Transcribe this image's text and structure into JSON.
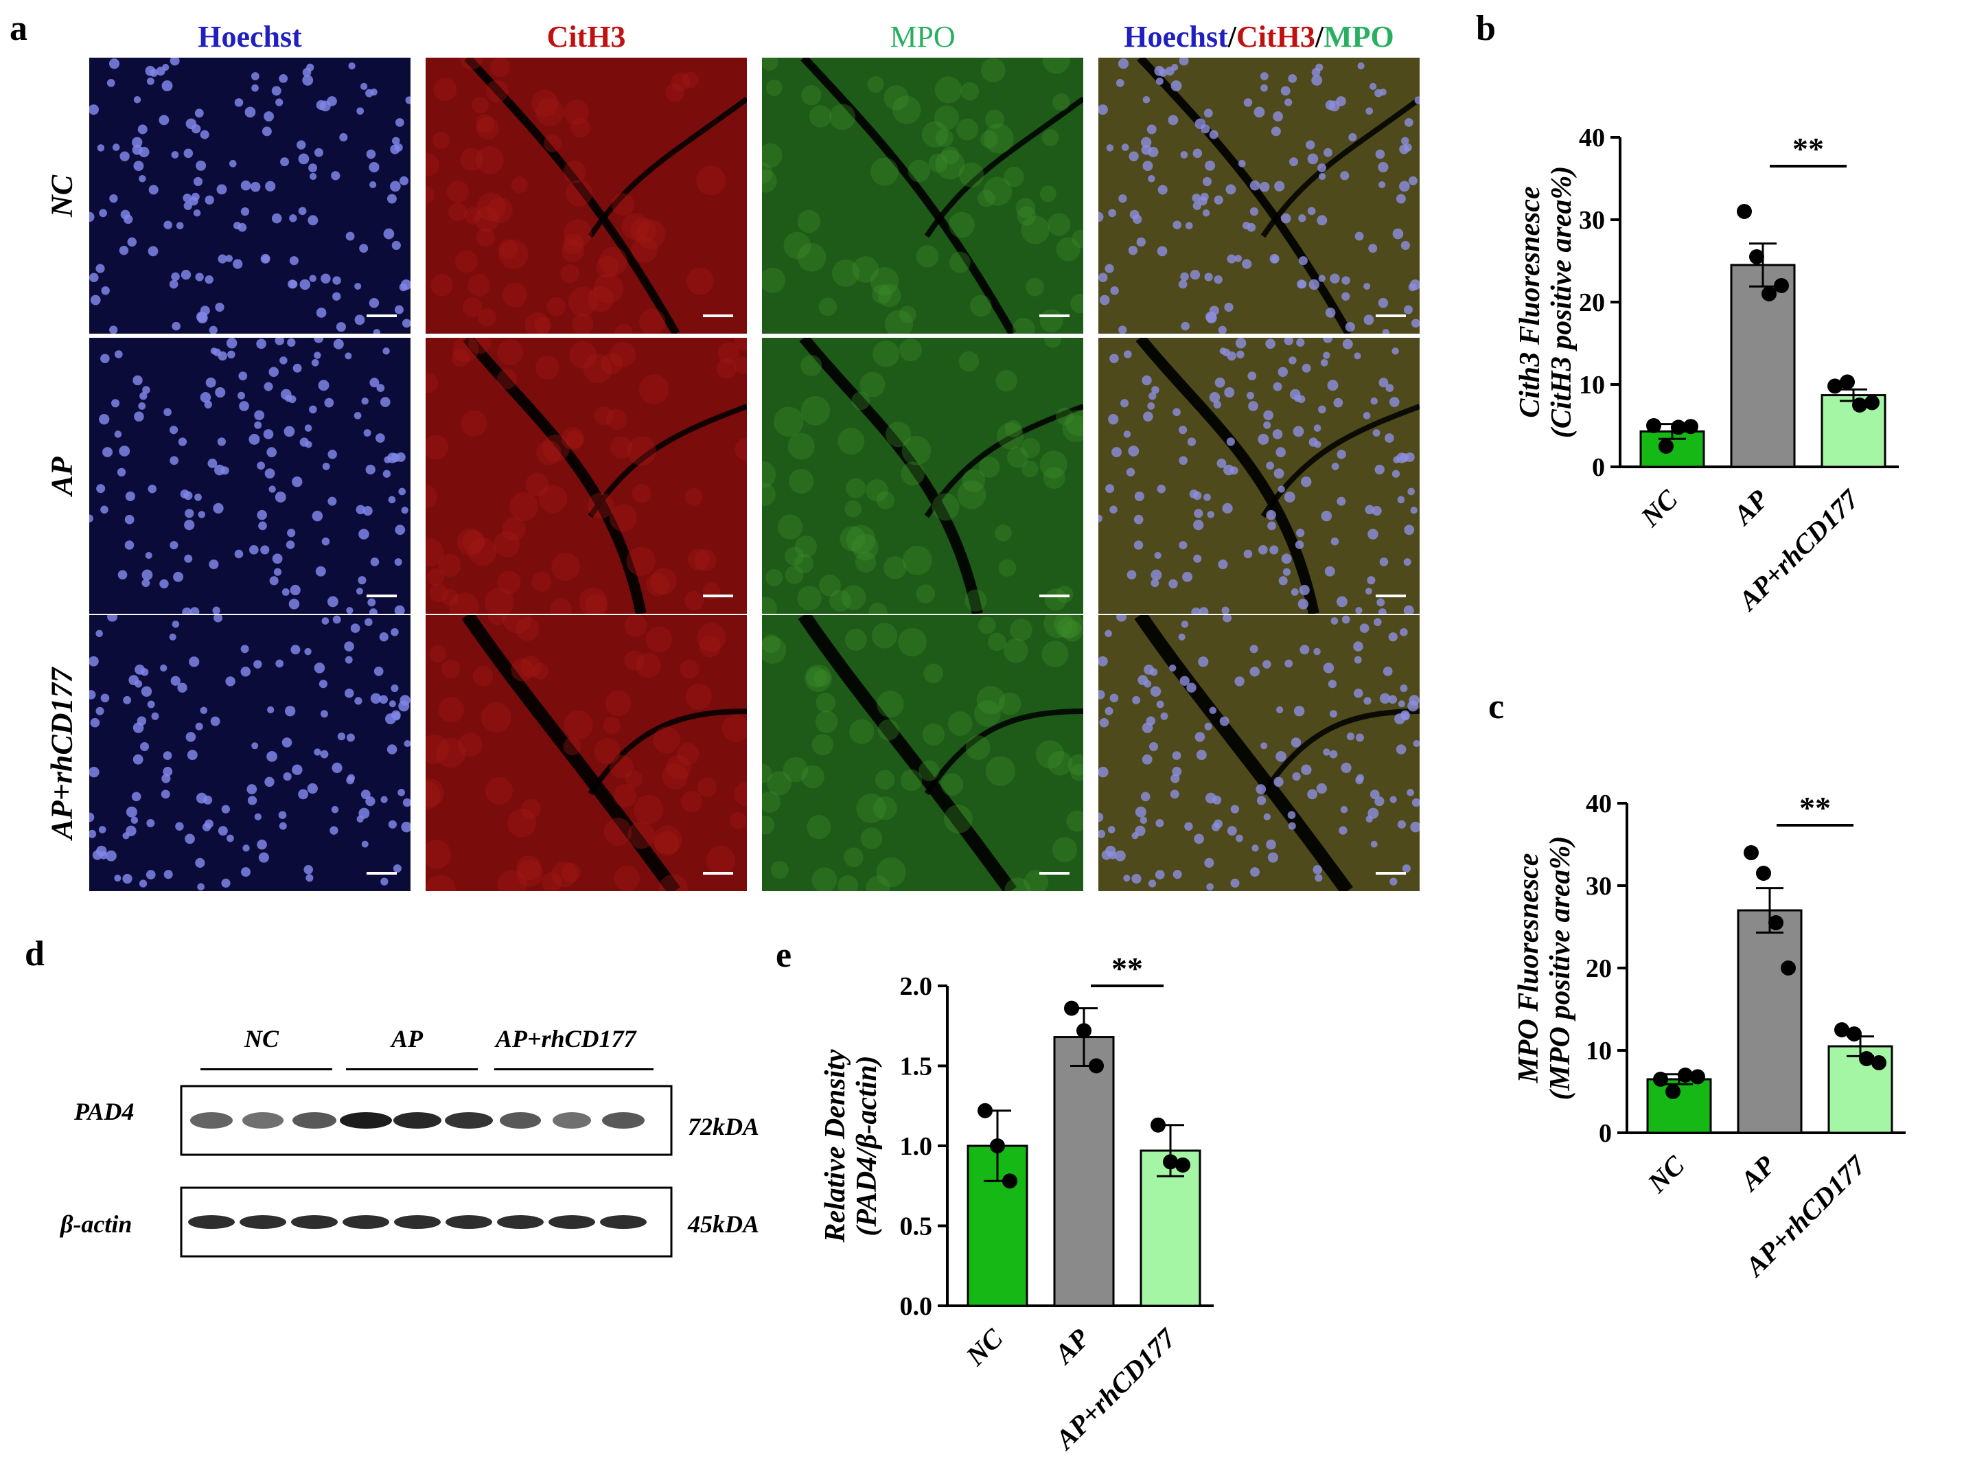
{
  "panel_a": {
    "letter": "a",
    "columns": [
      {
        "label": "Hoechst",
        "color": "#2020c0"
      },
      {
        "label": "CitH3",
        "color": "#c01010"
      },
      {
        "label": "MPO",
        "color": "#28b060"
      }
    ],
    "merge_label_parts": [
      {
        "text": "Hoechst",
        "color": "#2020c0"
      },
      {
        "text": "/",
        "color": "#000000"
      },
      {
        "text": "CitH3",
        "color": "#c01010"
      },
      {
        "text": "/",
        "color": "#000000"
      },
      {
        "text": "MPO",
        "color": "#28b060"
      }
    ],
    "rows": [
      "NC",
      "AP",
      "AP+rhCD177"
    ]
  },
  "panel_d": {
    "letter": "d",
    "groups": [
      "NC",
      "AP",
      "AP+rhCD177"
    ],
    "bands": [
      {
        "label": "PAD4",
        "size": "72kDA"
      },
      {
        "label": "β-actin",
        "size": "45kDA"
      }
    ]
  },
  "chart_data": [
    {
      "id": "b",
      "letter": "b",
      "type": "bar",
      "categories": [
        "NC",
        "AP",
        "AP+rhCD177"
      ],
      "values": [
        4.3,
        24.5,
        8.7
      ],
      "errors": [
        0.9,
        2.6,
        0.7
      ],
      "points": [
        [
          5.0,
          2.5,
          4.8,
          4.9
        ],
        [
          31.0,
          25.5,
          21.0,
          22.0
        ],
        [
          9.8,
          10.3,
          7.5,
          7.8
        ]
      ],
      "colors": [
        "#16b816",
        "#8a8a8a",
        "#a4f5a4"
      ],
      "ylabel": "Cith3 Fluoresnesce",
      "ylabel2": "(CitH3 positive area%)",
      "ylim": [
        0,
        40
      ],
      "yticks": [
        0,
        10,
        20,
        30,
        40
      ],
      "significance": {
        "label": "**",
        "from": 1,
        "to": 2
      }
    },
    {
      "id": "c",
      "letter": "c",
      "type": "bar",
      "categories": [
        "NC",
        "AP",
        "AP+rhCD177"
      ],
      "values": [
        6.5,
        27.0,
        10.5
      ],
      "errors": [
        0.6,
        2.7,
        1.2
      ],
      "points": [
        [
          6.5,
          5.0,
          7.0,
          6.8
        ],
        [
          34.0,
          31.5,
          25.5,
          20.0
        ],
        [
          12.5,
          12.0,
          9.0,
          8.5
        ]
      ],
      "colors": [
        "#16b816",
        "#8a8a8a",
        "#a4f5a4"
      ],
      "ylabel": "MPO Fluoresnesce",
      "ylabel2": "(MPO positive area%)",
      "ylim": [
        0,
        40
      ],
      "yticks": [
        0,
        10,
        20,
        30,
        40
      ],
      "significance": {
        "label": "**",
        "from": 1,
        "to": 2
      }
    },
    {
      "id": "e",
      "letter": "e",
      "type": "bar",
      "categories": [
        "NC",
        "AP",
        "AP+rhCD177"
      ],
      "values": [
        1.0,
        1.68,
        0.97
      ],
      "errors": [
        0.22,
        0.18,
        0.16
      ],
      "points": [
        [
          1.22,
          1.0,
          0.78
        ],
        [
          1.86,
          1.72,
          1.5
        ],
        [
          1.13,
          0.9,
          0.88
        ]
      ],
      "colors": [
        "#16b816",
        "#8a8a8a",
        "#a4f5a4"
      ],
      "ylabel": "Relative Density",
      "ylabel2": "(PAD4/β-actin)",
      "ylim": [
        0,
        2.0
      ],
      "yticks": [
        "0.0",
        "0.5",
        "1.0",
        "1.5",
        "2.0"
      ],
      "significance": {
        "label": "**",
        "from": 1,
        "to": 2
      }
    }
  ]
}
